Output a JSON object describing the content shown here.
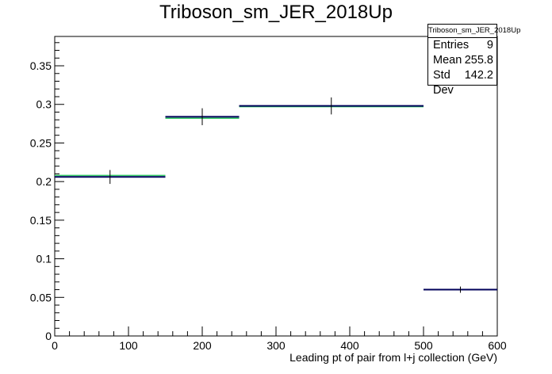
{
  "chart_data": {
    "type": "histogram",
    "title": "Triboson_sm_JER_2018Up",
    "xlabel": "Leading pt of pair from l+j collection (GeV)",
    "ylabel": "",
    "xlim": [
      0,
      600
    ],
    "ylim": [
      0,
      0.388
    ],
    "x_ticks": [
      "0",
      "100",
      "200",
      "300",
      "400",
      "500",
      "600"
    ],
    "y_ticks": [
      "0",
      "0.05",
      "0.1",
      "0.15",
      "0.2",
      "0.25",
      "0.3",
      "0.35"
    ],
    "grid": false,
    "bins": [
      {
        "xlow": 0,
        "xhigh": 150,
        "center": 75,
        "value": 0.206,
        "error": 0.009
      },
      {
        "xlow": 150,
        "xhigh": 250,
        "center": 200,
        "value": 0.284,
        "error": 0.011
      },
      {
        "xlow": 250,
        "xhigh": 500,
        "center": 375,
        "value": 0.298,
        "error": 0.011
      },
      {
        "xlow": 500,
        "xhigh": 600,
        "center": 550,
        "value": 0.06,
        "error": 0.004
      }
    ],
    "overlay_values": [
      0.208,
      0.282,
      0.297,
      0.06
    ],
    "colors": {
      "main": "#00005a",
      "overlay": "#33cc66",
      "error": "#000000"
    },
    "stats": {
      "name": "Triboson_sm_JER_2018Up",
      "entries_label": "Entries",
      "entries": "9",
      "mean_label": "Mean",
      "mean": "255.8",
      "stddev_label": "Std Dev",
      "stddev": "142.2"
    }
  }
}
